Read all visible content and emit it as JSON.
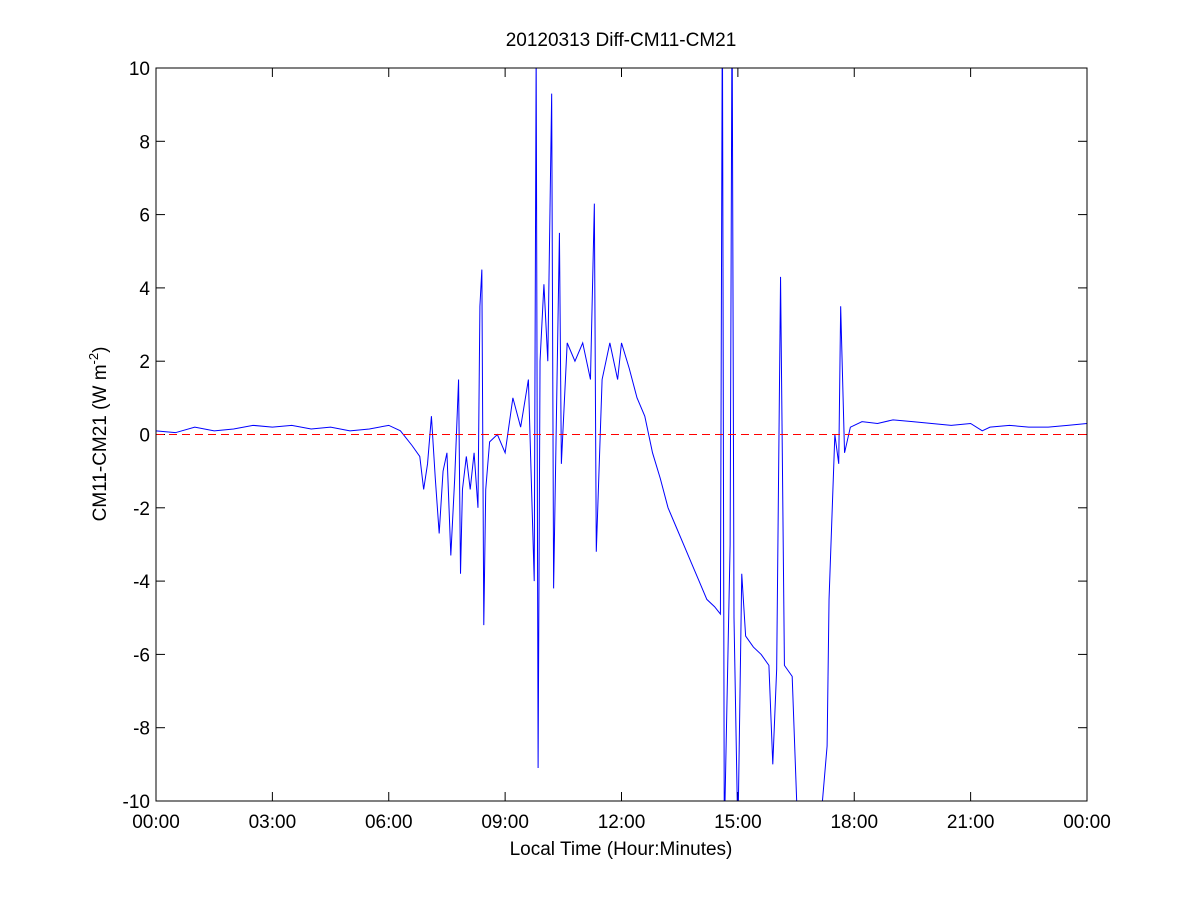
{
  "chart_data": {
    "type": "line",
    "title": "20120313 Diff-CM11-CM21",
    "xlabel": "Local Time (Hour:Minutes)",
    "ylabel": [
      "CM11-CM21 (W m",
      "-2",
      ")"
    ],
    "xlim": [
      0,
      24
    ],
    "xticks": [
      {
        "value": 0,
        "label": "00:00"
      },
      {
        "value": 3,
        "label": "03:00"
      },
      {
        "value": 6,
        "label": "06:00"
      },
      {
        "value": 9,
        "label": "09:00"
      },
      {
        "value": 12,
        "label": "12:00"
      },
      {
        "value": 15,
        "label": "15:00"
      },
      {
        "value": 18,
        "label": "18:00"
      },
      {
        "value": 21,
        "label": "21:00"
      },
      {
        "value": 24,
        "label": "00:00"
      }
    ],
    "ylim": [
      -10,
      10
    ],
    "yticks": [
      -10,
      -8,
      -6,
      -4,
      -2,
      0,
      2,
      4,
      6,
      8,
      10
    ],
    "reference_line": {
      "value": 0,
      "color": "#ff0000",
      "style": "dashed"
    },
    "x": [
      0,
      0.5,
      1,
      1.5,
      2,
      2.5,
      3,
      3.5,
      4,
      4.5,
      5,
      5.5,
      6,
      6.3,
      6.6,
      6.8,
      6.9,
      7.0,
      7.1,
      7.2,
      7.3,
      7.4,
      7.5,
      7.6,
      7.7,
      7.8,
      7.85,
      7.9,
      8.0,
      8.1,
      8.2,
      8.3,
      8.35,
      8.4,
      8.45,
      8.5,
      8.6,
      8.8,
      9.0,
      9.2,
      9.4,
      9.6,
      9.75,
      9.8,
      9.85,
      9.9,
      10.0,
      10.1,
      10.2,
      10.25,
      10.4,
      10.45,
      10.6,
      10.8,
      11.0,
      11.2,
      11.3,
      11.35,
      11.5,
      11.7,
      11.9,
      12.0,
      12.2,
      12.4,
      12.6,
      12.8,
      13.0,
      13.2,
      13.4,
      13.6,
      13.8,
      14.0,
      14.2,
      14.4,
      14.55,
      14.6,
      14.65,
      14.8,
      14.85,
      14.9,
      15.0,
      15.1,
      15.2,
      15.4,
      15.6,
      15.8,
      15.9,
      16.0,
      16.1,
      16.2,
      16.4,
      16.55,
      16.7,
      17.1,
      17.3,
      17.35,
      17.5,
      17.6,
      17.65,
      17.75,
      17.9,
      18.2,
      18.6,
      19.0,
      19.5,
      20.0,
      20.5,
      21.0,
      21.3,
      21.5,
      22.0,
      22.5,
      23.0,
      23.5,
      24
    ],
    "series": [
      {
        "color": "#0000ff",
        "values": [
          0.1,
          0.05,
          0.2,
          0.1,
          0.15,
          0.25,
          0.2,
          0.25,
          0.15,
          0.2,
          0.1,
          0.15,
          0.25,
          0.1,
          -0.3,
          -0.6,
          -1.5,
          -0.8,
          0.5,
          -1.2,
          -2.7,
          -1.0,
          -0.5,
          -3.3,
          -1.2,
          1.5,
          -3.8,
          -1.5,
          -0.6,
          -1.5,
          -0.5,
          -2.0,
          3.5,
          4.5,
          -5.2,
          -1.5,
          -0.2,
          0,
          -0.5,
          1.0,
          0.2,
          1.5,
          -4.0,
          10.5,
          -9.1,
          2,
          4.1,
          2.0,
          9.3,
          -4.2,
          5.5,
          -0.8,
          2.5,
          2.0,
          2.5,
          1.5,
          6.3,
          -3.2,
          1.5,
          2.5,
          1.5,
          2.5,
          1.8,
          1.0,
          0.5,
          -0.5,
          -1.2,
          -2.0,
          -2.5,
          -3.0,
          -3.5,
          -4.0,
          -4.5,
          -4.7,
          -4.9,
          12,
          -11,
          -3,
          12,
          -5,
          -11,
          -3.8,
          -5.5,
          -5.8,
          -6.0,
          -6.3,
          -9.0,
          -6.4,
          4.3,
          -6.3,
          -6.6,
          -11,
          -11,
          -11,
          -8.5,
          -4.5,
          0,
          -0.8,
          3.5,
          -0.5,
          0.2,
          0.35,
          0.3,
          0.4,
          0.35,
          0.3,
          0.25,
          0.3,
          0.1,
          0.2,
          0.25,
          0.2,
          0.2,
          0.25,
          0.3
        ]
      }
    ]
  }
}
